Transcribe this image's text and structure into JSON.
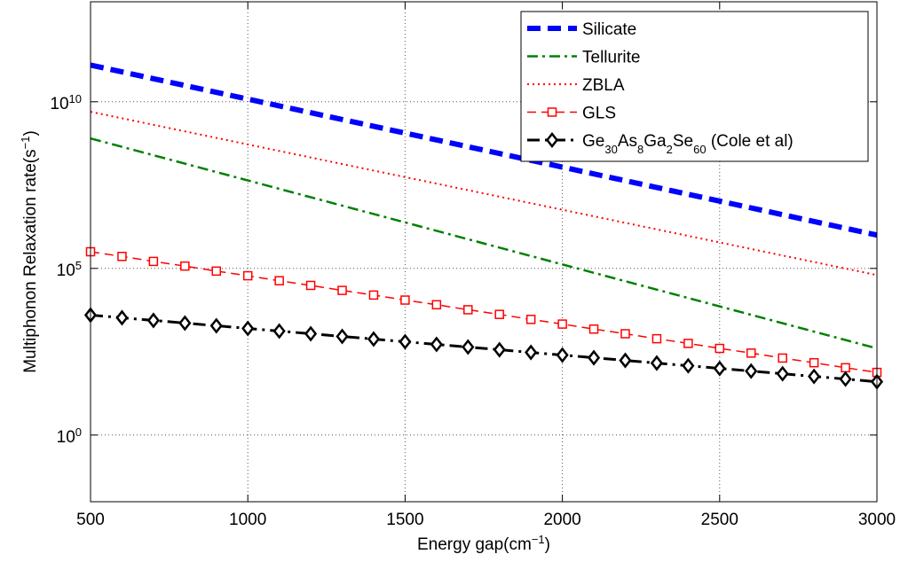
{
  "chart_data": {
    "type": "line",
    "xlabel": "Energy gap(cm",
    "xlabel_sup": "−1",
    "xlabel_end": ")",
    "ylabel": "Multiphonon Relaxation rate(s",
    "ylabel_sup": "−1",
    "ylabel_end": ")",
    "x_scale": "linear",
    "y_scale": "log",
    "xlim": [
      500,
      3000
    ],
    "ylim_log10": [
      -2,
      13
    ],
    "grid": true,
    "legend_position": "top-right",
    "x_ticks": [
      500,
      1000,
      1500,
      2000,
      2500,
      3000
    ],
    "x_tick_labels": [
      "500",
      "1000",
      "1500",
      "2000",
      "2500",
      "3000"
    ],
    "y_ticks_log10": [
      0,
      5,
      10
    ],
    "y_tick_labels": [
      {
        "base": "10",
        "exp": "0"
      },
      {
        "base": "10",
        "exp": "5"
      },
      {
        "base": "10",
        "exp": "10"
      }
    ],
    "series": [
      {
        "name": "Silicate",
        "color": "#0000ff",
        "style": "dashed-thick",
        "marker": "none",
        "x": [
          500,
          3000
        ],
        "log10_y": [
          11.1,
          6.0
        ]
      },
      {
        "name": "Tellurite",
        "color": "#008000",
        "style": "dash-dot",
        "marker": "none",
        "x": [
          500,
          3000
        ],
        "log10_y": [
          8.9,
          2.6
        ]
      },
      {
        "name": "ZBLA",
        "color": "#ff0000",
        "style": "dotted",
        "marker": "none",
        "x": [
          500,
          3000
        ],
        "log10_y": [
          9.7,
          4.8
        ]
      },
      {
        "name": "GLS",
        "color": "#ff0000",
        "style": "dashed",
        "marker": "square",
        "x": [
          500,
          600,
          700,
          800,
          900,
          1000,
          1100,
          1200,
          1300,
          1400,
          1500,
          1600,
          1700,
          1800,
          1900,
          2000,
          2100,
          2200,
          2300,
          2400,
          2500,
          2600,
          2700,
          2800,
          2900,
          3000
        ],
        "log10_y": [
          5.5,
          5.36,
          5.21,
          5.07,
          4.92,
          4.78,
          4.63,
          4.49,
          4.34,
          4.2,
          4.05,
          3.91,
          3.76,
          3.62,
          3.47,
          3.33,
          3.18,
          3.04,
          2.89,
          2.75,
          2.6,
          2.46,
          2.31,
          2.17,
          2.02,
          1.88
        ]
      },
      {
        "name_parts": [
          {
            "t": "Ge",
            "sub": false
          },
          {
            "t": "30",
            "sub": true
          },
          {
            "t": "As",
            "sub": false
          },
          {
            "t": "8",
            "sub": true
          },
          {
            "t": "Ga",
            "sub": false
          },
          {
            "t": "2",
            "sub": true
          },
          {
            "t": "Se",
            "sub": false
          },
          {
            "t": "60",
            "sub": true
          },
          {
            "t": " (Cole et al)",
            "sub": false
          }
        ],
        "color": "#000000",
        "style": "dash-dot-thick",
        "marker": "diamond",
        "x": [
          500,
          600,
          700,
          800,
          900,
          1000,
          1100,
          1200,
          1300,
          1400,
          1500,
          1600,
          1700,
          1800,
          1900,
          2000,
          2100,
          2200,
          2300,
          2400,
          2500,
          2600,
          2700,
          2800,
          2900,
          3000
        ],
        "log10_y": [
          3.6,
          3.52,
          3.44,
          3.36,
          3.28,
          3.2,
          3.12,
          3.04,
          2.96,
          2.88,
          2.8,
          2.72,
          2.64,
          2.56,
          2.48,
          2.4,
          2.32,
          2.24,
          2.16,
          2.08,
          2.0,
          1.92,
          1.84,
          1.76,
          1.68,
          1.6
        ]
      }
    ]
  }
}
